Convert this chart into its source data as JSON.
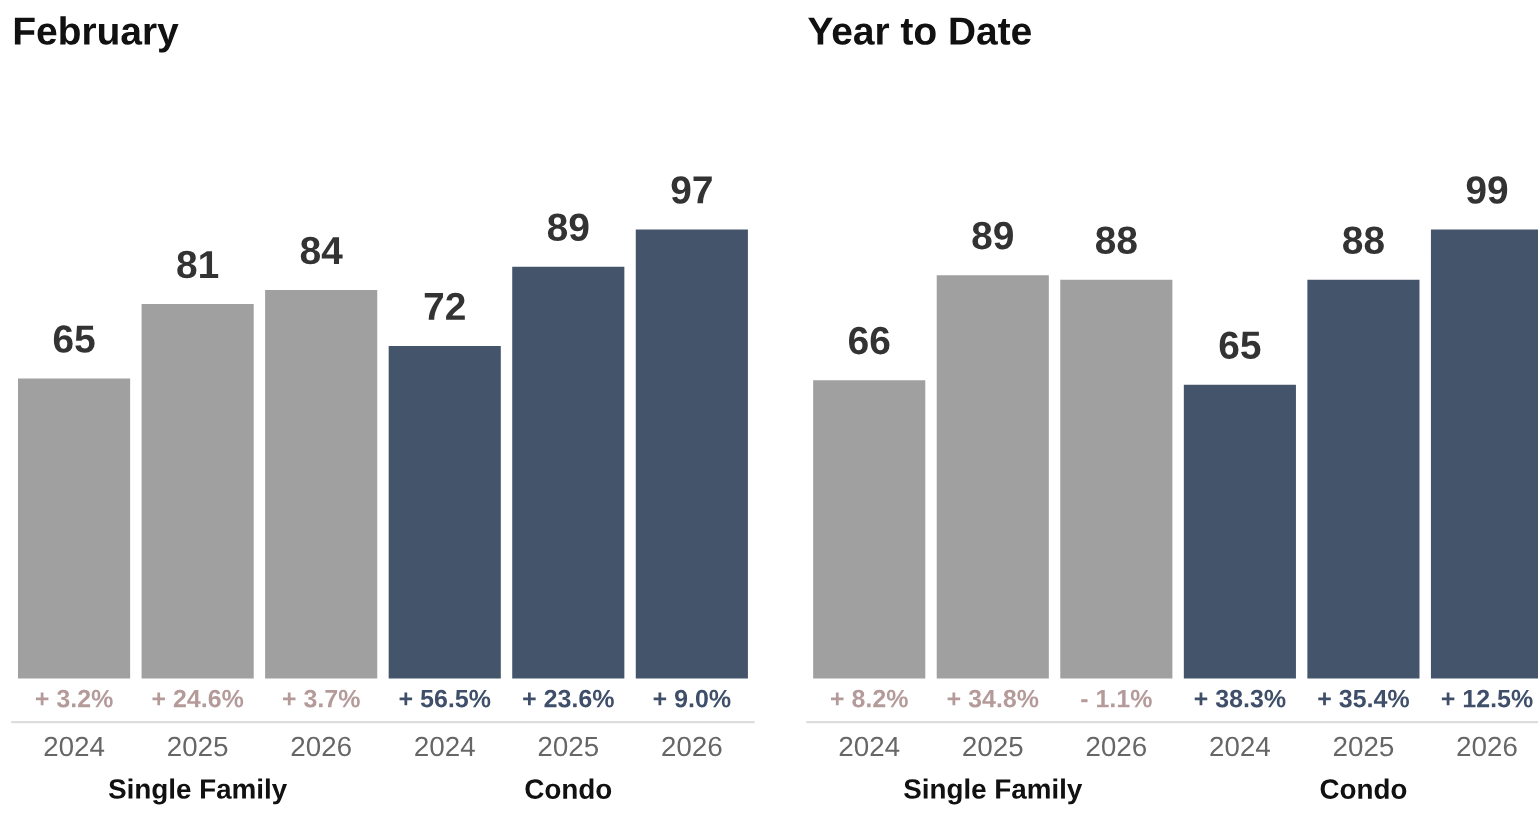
{
  "chart_data": [
    {
      "type": "bar",
      "title": "February",
      "categories": [
        "2024",
        "2025",
        "2026",
        "2024",
        "2025",
        "2026"
      ],
      "data_labels": true,
      "grid": false,
      "legend": false,
      "series": [
        {
          "color": "#a0a0a0",
          "values": [
            65,
            81,
            84,
            null,
            null,
            null
          ]
        },
        {
          "color": "#44546a",
          "values": [
            null,
            null,
            null,
            72,
            89,
            97
          ]
        }
      ],
      "annotations": [
        "+ 3.2%",
        "+ 24.6%",
        "+ 3.7%",
        "+ 56.5%",
        "+ 23.6%",
        "+ 9.0%",
        "Single Family",
        "Condo"
      ]
    },
    {
      "type": "bar",
      "title": "Year to Date",
      "categories": [
        "2024",
        "2025",
        "2026",
        "2024",
        "2025",
        "2026"
      ],
      "data_labels": true,
      "grid": false,
      "legend": false,
      "series": [
        {
          "color": "#a0a0a0",
          "values": [
            66,
            89,
            88,
            null,
            null,
            null
          ]
        },
        {
          "color": "#44546a",
          "values": [
            null,
            null,
            null,
            65,
            88,
            99
          ]
        }
      ],
      "annotations": [
        "+ 8.2%",
        "+ 34.8%",
        "- 1.1%",
        "+ 38.3%",
        "+ 35.4%",
        "+ 12.5%",
        "Single Family",
        "Condo"
      ]
    }
  ]
}
